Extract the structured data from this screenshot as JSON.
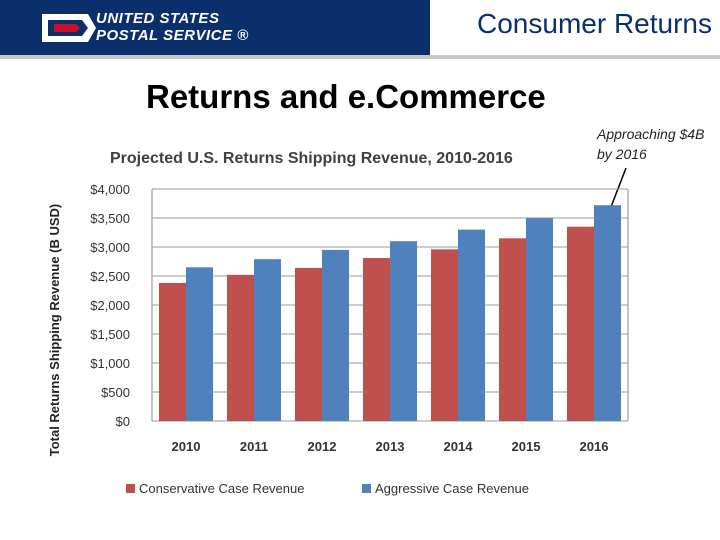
{
  "header": {
    "logo_line1": "UNITED STATES",
    "logo_line2": "POSTAL SERVICE ®",
    "section_title": "Consumer Returns",
    "colors": {
      "brand_blue": "#0b2f6b",
      "brand_red": "#c8102e"
    }
  },
  "slide": {
    "title": "Returns and e.Commerce",
    "annotation": "Approaching $4B by 2016"
  },
  "chart_data": {
    "type": "bar",
    "title": "Projected U.S. Returns Shipping Revenue, 2010-2016",
    "xlabel": "",
    "ylabel": "Total Returns Shipping Revenue (B USD)",
    "categories": [
      "2010",
      "2011",
      "2012",
      "2013",
      "2014",
      "2015",
      "2016"
    ],
    "ylim": [
      0,
      4000
    ],
    "yticks": [
      0,
      500,
      1000,
      1500,
      2000,
      2500,
      3000,
      3500,
      4000
    ],
    "ytick_labels": [
      "$0",
      "$500",
      "$1,000",
      "$1,500",
      "$2,000",
      "$2,500",
      "$3,000",
      "$3,500",
      "$4,000"
    ],
    "series": [
      {
        "name": "Conservative Case Revenue",
        "color": "#c0504d",
        "values": [
          2380,
          2520,
          2640,
          2810,
          2960,
          3150,
          3350
        ]
      },
      {
        "name": "Aggressive Case Revenue",
        "color": "#4f81bd",
        "values": [
          2650,
          2790,
          2950,
          3100,
          3300,
          3500,
          3720
        ]
      }
    ],
    "legend_position": "bottom"
  }
}
